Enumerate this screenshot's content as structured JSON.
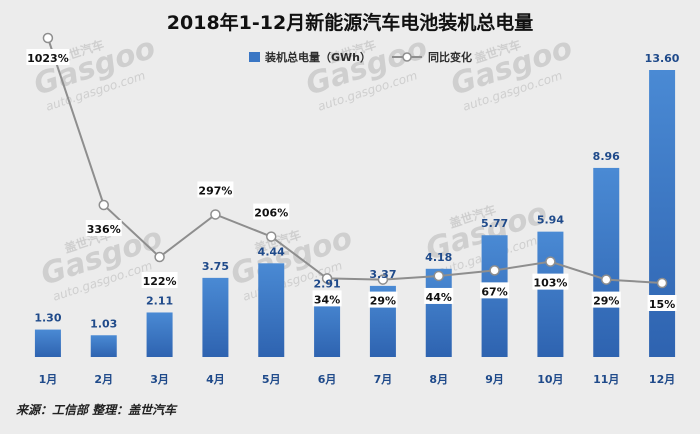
{
  "chart_data": {
    "type": "bar",
    "title": "2018年1-12月新能源汽车电池装机总电量",
    "categories": [
      "1月",
      "2月",
      "3月",
      "4月",
      "5月",
      "6月",
      "7月",
      "8月",
      "9月",
      "10月",
      "11月",
      "12月"
    ],
    "series": [
      {
        "name": "装机总电量（GWh）",
        "type": "bar",
        "values": [
          1.3,
          1.03,
          2.11,
          3.75,
          4.44,
          2.91,
          3.37,
          4.18,
          5.77,
          5.94,
          8.96,
          13.6
        ],
        "labels": [
          "1.30",
          "1.03",
          "2.11",
          "3.75",
          "4.44",
          "2.91",
          "3.37",
          "4.18",
          "5.77",
          "5.94",
          "8.96",
          "13.60"
        ]
      },
      {
        "name": "同比变化",
        "type": "line",
        "values": [
          1023,
          336,
          122,
          297,
          206,
          34,
          29,
          44,
          67,
          103,
          29,
          15
        ],
        "labels": [
          "1023%",
          "336%",
          "122%",
          "297%",
          "206%",
          "34%",
          "29%",
          "44%",
          "67%",
          "103%",
          "29%",
          "15%"
        ]
      }
    ],
    "ylim": [
      0,
      14.5
    ],
    "y2lim": [
      0,
      1100
    ],
    "legend_position": "top-right",
    "grid": false,
    "colors": {
      "bar_top": "#4a8ad4",
      "bar_bottom": "#2e63b0",
      "line": "#8e8e8e",
      "background": "#ececec"
    }
  },
  "source_text": "来源：工信部 整理：盖世汽车",
  "watermark": {
    "brand": "Gasgoo",
    "cn": "盖世汽车",
    "url": "auto.gasgoo.com"
  }
}
